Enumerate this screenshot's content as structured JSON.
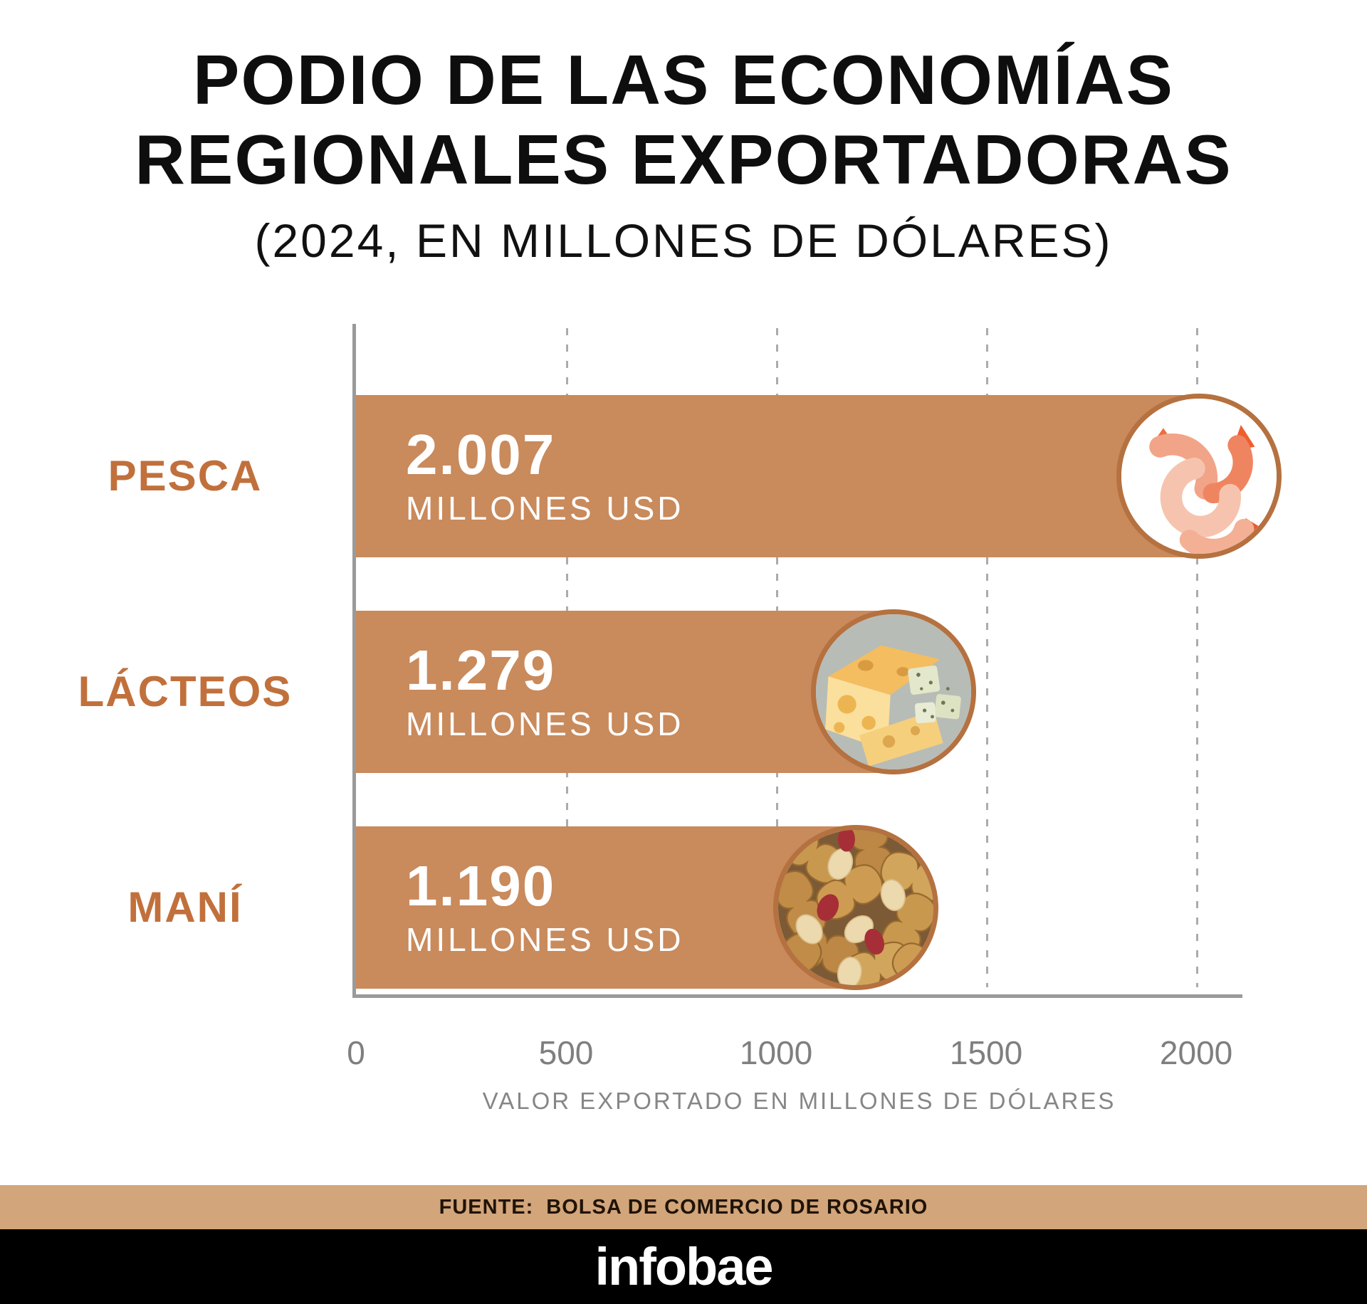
{
  "header": {
    "title_line1": "PODIO DE LAS ECONOMÍAS",
    "title_line2": "REGIONALES EXPORTADORAS",
    "subtitle": "(2024, EN MILLONES DE DÓLARES)"
  },
  "chart_data": {
    "type": "bar",
    "orientation": "horizontal",
    "title": "PODIO DE LAS ECONOMÍAS REGIONALES EXPORTADORAS (2024, EN MILLONES DE DÓLARES)",
    "categories": [
      "PESCA",
      "LÁCTEOS",
      "MANÍ"
    ],
    "values": [
      2007,
      1279,
      1190
    ],
    "rows": [
      {
        "category": "PESCA",
        "value": 2007,
        "value_label": "2.007",
        "unit": "MILLONES USD",
        "icon": "shrimp-icon"
      },
      {
        "category": "LÁCTEOS",
        "value": 1279,
        "value_label": "1.279",
        "unit": "MILLONES USD",
        "icon": "cheese-icon"
      },
      {
        "category": "MANÍ",
        "value": 1190,
        "value_label": "1.190",
        "unit": "MILLONES USD",
        "icon": "peanuts-icon"
      }
    ],
    "xlabel": "VALOR EXPORTADO EN MILLONES DE DÓLARES",
    "ticks": [
      0,
      500,
      1000,
      1500,
      2000
    ],
    "xlim": [
      0,
      2110
    ],
    "grid": "dashed-vertical",
    "legend": "none",
    "bar_color": "#c98a5c",
    "category_color": "#c1703c",
    "circle_border_color": "#b5713f"
  },
  "footer": {
    "source_prefix": "FUENTE:",
    "source": "BOLSA DE COMERCIO DE ROSARIO",
    "logo": "infobae",
    "source_band_color": "#d2a57b",
    "logo_band_color": "#000000"
  }
}
